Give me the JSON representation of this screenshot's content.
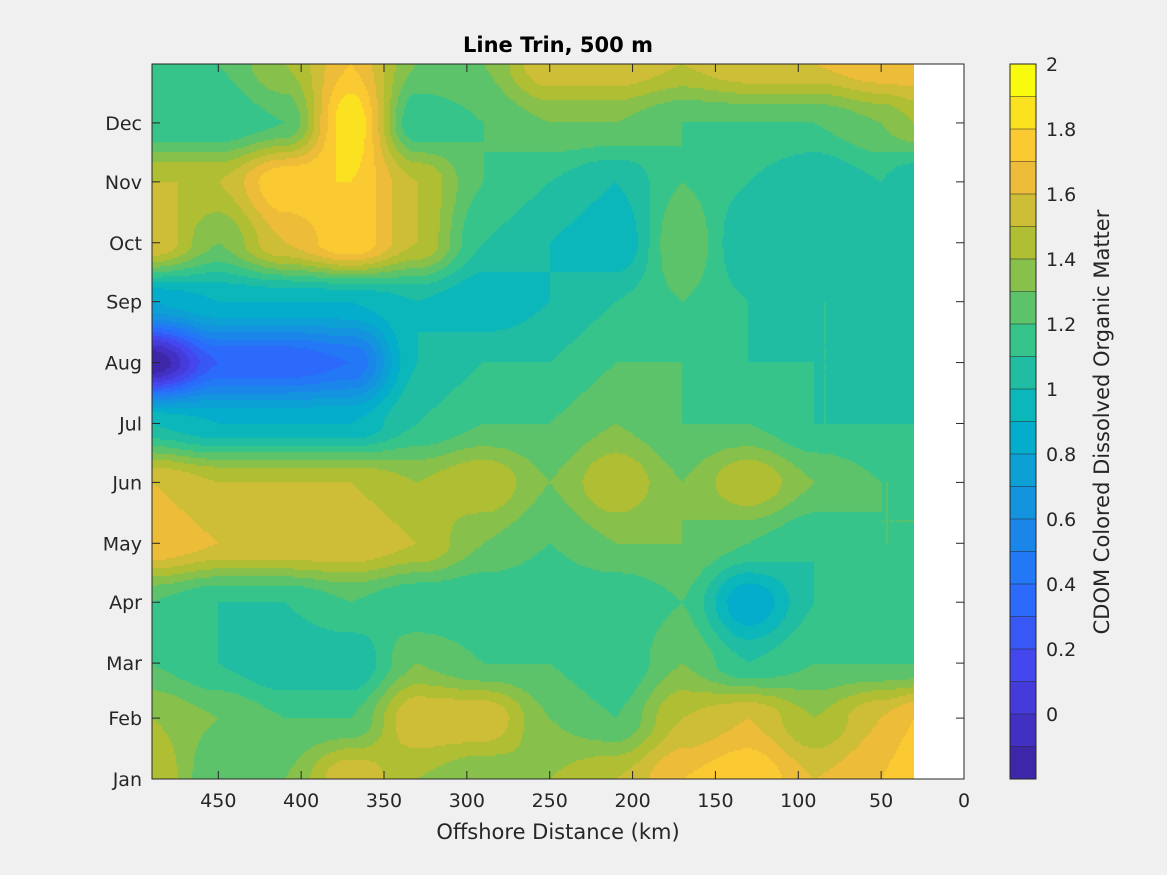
{
  "chart_data": {
    "type": "heatmap",
    "subtype": "filled-contour",
    "title": "Line Trin, 500 m",
    "xlabel": "Offshore Distance (km)",
    "ylabel": "",
    "colorbar_label": "CDOM Colored Dissolved Organic Matter",
    "x_reversed": true,
    "xlim": [
      0,
      490
    ],
    "x_ticks": [
      450,
      400,
      350,
      300,
      250,
      200,
      150,
      100,
      50,
      0
    ],
    "x_tick_labels": [
      "450",
      "400",
      "350",
      "300",
      "250",
      "200",
      "150",
      "100",
      "50",
      "0"
    ],
    "y_ticks": [
      "Jan",
      "Feb",
      "Mar",
      "Apr",
      "May",
      "Jun",
      "Jul",
      "Aug",
      "Sep",
      "Oct",
      "Nov",
      "Dec"
    ],
    "y_tick_day": [
      1,
      32,
      60,
      91,
      121,
      152,
      182,
      213,
      244,
      274,
      305,
      335
    ],
    "ylim_day": [
      1,
      365
    ],
    "data_x_extent": [
      30,
      490
    ],
    "colorbar": {
      "clim": [
        -0.2,
        2.0
      ],
      "levels": [
        -0.2,
        -0.1,
        0,
        0.1,
        0.2,
        0.3,
        0.4,
        0.5,
        0.6,
        0.7,
        0.8,
        0.9,
        1.0,
        1.1,
        1.2,
        1.3,
        1.4,
        1.5,
        1.6,
        1.7,
        1.8,
        1.9,
        2.0
      ],
      "tick_values": [
        0,
        0.2,
        0.4,
        0.6,
        0.8,
        1,
        1.2,
        1.4,
        1.6,
        1.8,
        2
      ],
      "tick_labels": [
        "0",
        "0.2",
        "0.4",
        "0.6",
        "0.8",
        "1",
        "1.2",
        "1.4",
        "1.6",
        "1.8",
        "2"
      ],
      "colormap": "parula"
    },
    "x": [
      490,
      450,
      410,
      370,
      330,
      290,
      250,
      210,
      170,
      130,
      90,
      50,
      30
    ],
    "y_day": [
      1,
      32,
      60,
      91,
      121,
      152,
      182,
      213,
      244,
      274,
      305,
      335,
      365
    ],
    "z": [
      [
        1.5,
        1.2,
        1.3,
        1.6,
        1.4,
        1.3,
        1.4,
        1.5,
        1.7,
        1.8,
        1.6,
        1.7,
        1.8
      ],
      [
        1.4,
        1.3,
        1.2,
        1.2,
        1.6,
        1.6,
        1.3,
        1.2,
        1.5,
        1.6,
        1.4,
        1.6,
        1.7
      ],
      [
        1.2,
        1.1,
        1.0,
        1.0,
        1.3,
        1.2,
        1.2,
        1.1,
        1.3,
        1.1,
        1.2,
        1.2,
        1.2
      ],
      [
        1.2,
        1.1,
        1.1,
        1.2,
        1.1,
        1.1,
        1.1,
        1.1,
        1.2,
        0.8,
        1.1,
        1.2,
        1.1
      ],
      [
        1.7,
        1.6,
        1.6,
        1.6,
        1.5,
        1.3,
        1.2,
        1.3,
        1.3,
        1.2,
        1.1,
        1.2,
        1.2
      ],
      [
        1.6,
        1.5,
        1.5,
        1.5,
        1.4,
        1.5,
        1.3,
        1.5,
        1.3,
        1.5,
        1.3,
        1.2,
        1.2
      ],
      [
        1.0,
        0.9,
        0.9,
        0.9,
        1.1,
        1.2,
        1.2,
        1.3,
        1.2,
        1.2,
        1.1,
        1.1,
        1.1
      ],
      [
        -0.2,
        0.3,
        0.3,
        0.4,
        1.0,
        1.1,
        1.1,
        1.2,
        1.2,
        1.1,
        1.1,
        1.1,
        1.1
      ],
      [
        0.8,
        0.9,
        0.9,
        0.9,
        1.0,
        0.9,
        1.0,
        1.1,
        1.2,
        1.1,
        1.1,
        1.1,
        1.1
      ],
      [
        1.6,
        1.3,
        1.6,
        1.8,
        1.5,
        1.1,
        1.0,
        0.9,
        1.3,
        1.0,
        1.0,
        1.1,
        1.1
      ],
      [
        1.5,
        1.5,
        1.8,
        1.8,
        1.5,
        1.2,
        1.1,
        1.0,
        1.2,
        1.1,
        1.0,
        1.1,
        1.0
      ],
      [
        1.1,
        1.1,
        1.2,
        1.9,
        1.1,
        1.2,
        1.3,
        1.3,
        1.2,
        1.2,
        1.2,
        1.3,
        1.4
      ],
      [
        1.2,
        1.2,
        1.4,
        1.7,
        1.3,
        1.3,
        1.6,
        1.6,
        1.5,
        1.6,
        1.6,
        1.7,
        1.7
      ]
    ]
  }
}
